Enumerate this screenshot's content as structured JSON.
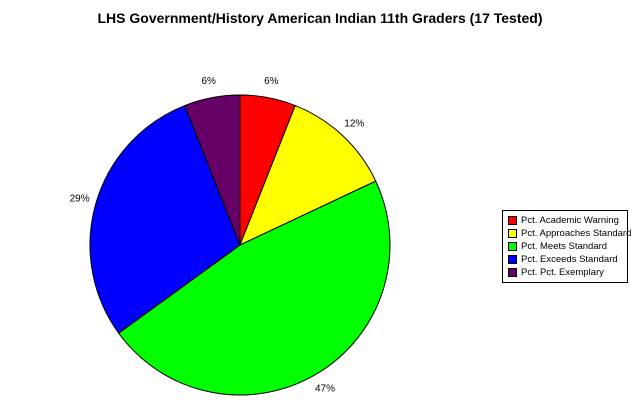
{
  "chart_data": {
    "type": "pie",
    "title": "LHS Government/History American Indian 11th Graders (17 Tested)",
    "slices": [
      {
        "label": "Pct. Academic Warning",
        "value": 6,
        "value_label": "6%",
        "color": "#ff0000"
      },
      {
        "label": "Pct. Approaches Standard",
        "value": 12,
        "value_label": "12%",
        "color": "#ffff00"
      },
      {
        "label": "Pct. Meets Standard",
        "value": 47,
        "value_label": "47%",
        "color": "#00ff00"
      },
      {
        "label": "Pct. Exceeds Standard",
        "value": 29,
        "value_label": "29%",
        "color": "#0000ff"
      },
      {
        "label": "Pct. Pct. Exemplary",
        "value": 6,
        "value_label": "6%",
        "color": "#660066"
      }
    ],
    "legend_position": "right",
    "start_angle": "12 o'clock",
    "direction": "clockwise"
  }
}
